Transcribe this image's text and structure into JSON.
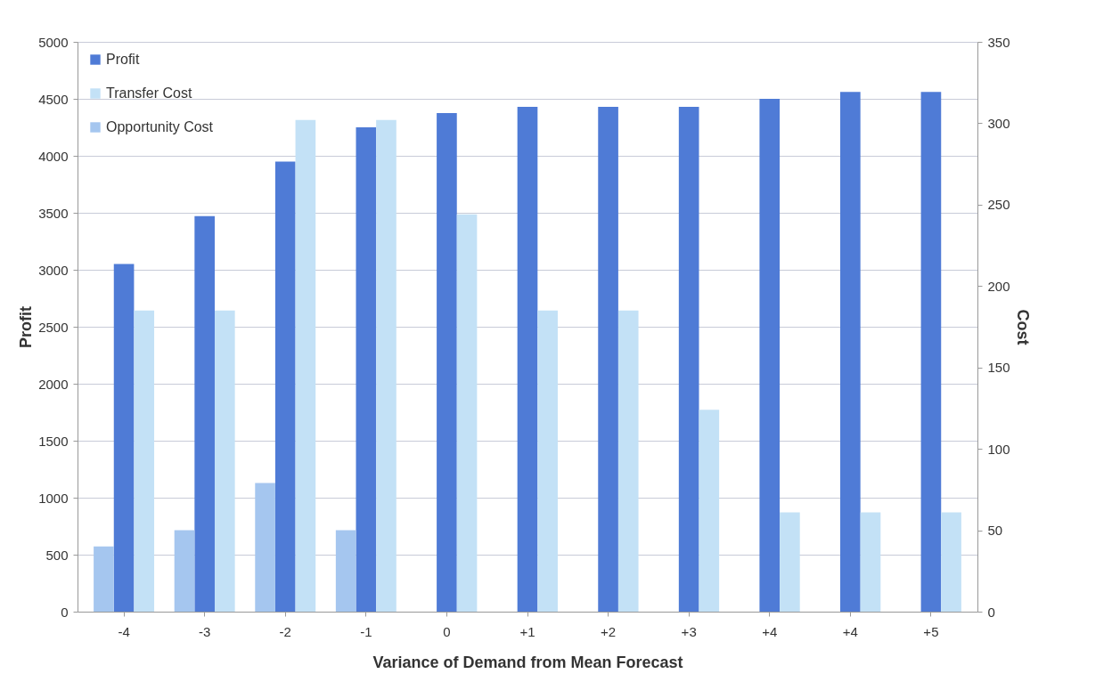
{
  "chart_data": {
    "type": "bar",
    "xlabel": "Variance of Demand from Mean Forecast",
    "ylabel": "Profit",
    "y2label": "Cost",
    "categories": [
      "-4",
      "-3",
      "-2",
      "-1",
      "0",
      "+1",
      "+2",
      "+3",
      "+4",
      "+4",
      "+5"
    ],
    "series": [
      {
        "name": "Profit",
        "color": "#4f7bd6",
        "values": [
          3050,
          3470,
          3950,
          4250,
          4375,
          4430,
          4430,
          4430,
          4500,
          4560,
          4560
        ]
      },
      {
        "name": "Transfer Cost",
        "color": "#c3e1f6",
        "axis": "y2",
        "values": [
          185,
          185,
          302,
          302,
          244,
          185,
          185,
          124,
          61,
          61,
          61
        ]
      },
      {
        "name": "Opportunity Cost",
        "color": "#a5c6ef",
        "axis": "y2",
        "values": [
          40,
          50,
          79,
          50,
          0,
          0,
          0,
          0,
          0,
          0,
          0
        ]
      }
    ],
    "ylim": [
      0,
      5000
    ],
    "yticks": [
      0,
      500,
      1000,
      1500,
      2000,
      2500,
      3000,
      3500,
      4000,
      4500,
      5000
    ],
    "y2lim": [
      0,
      350
    ],
    "y2ticks": [
      0,
      50,
      100,
      150,
      200,
      250,
      300,
      350
    ],
    "grid": "y",
    "legend": "top left"
  }
}
